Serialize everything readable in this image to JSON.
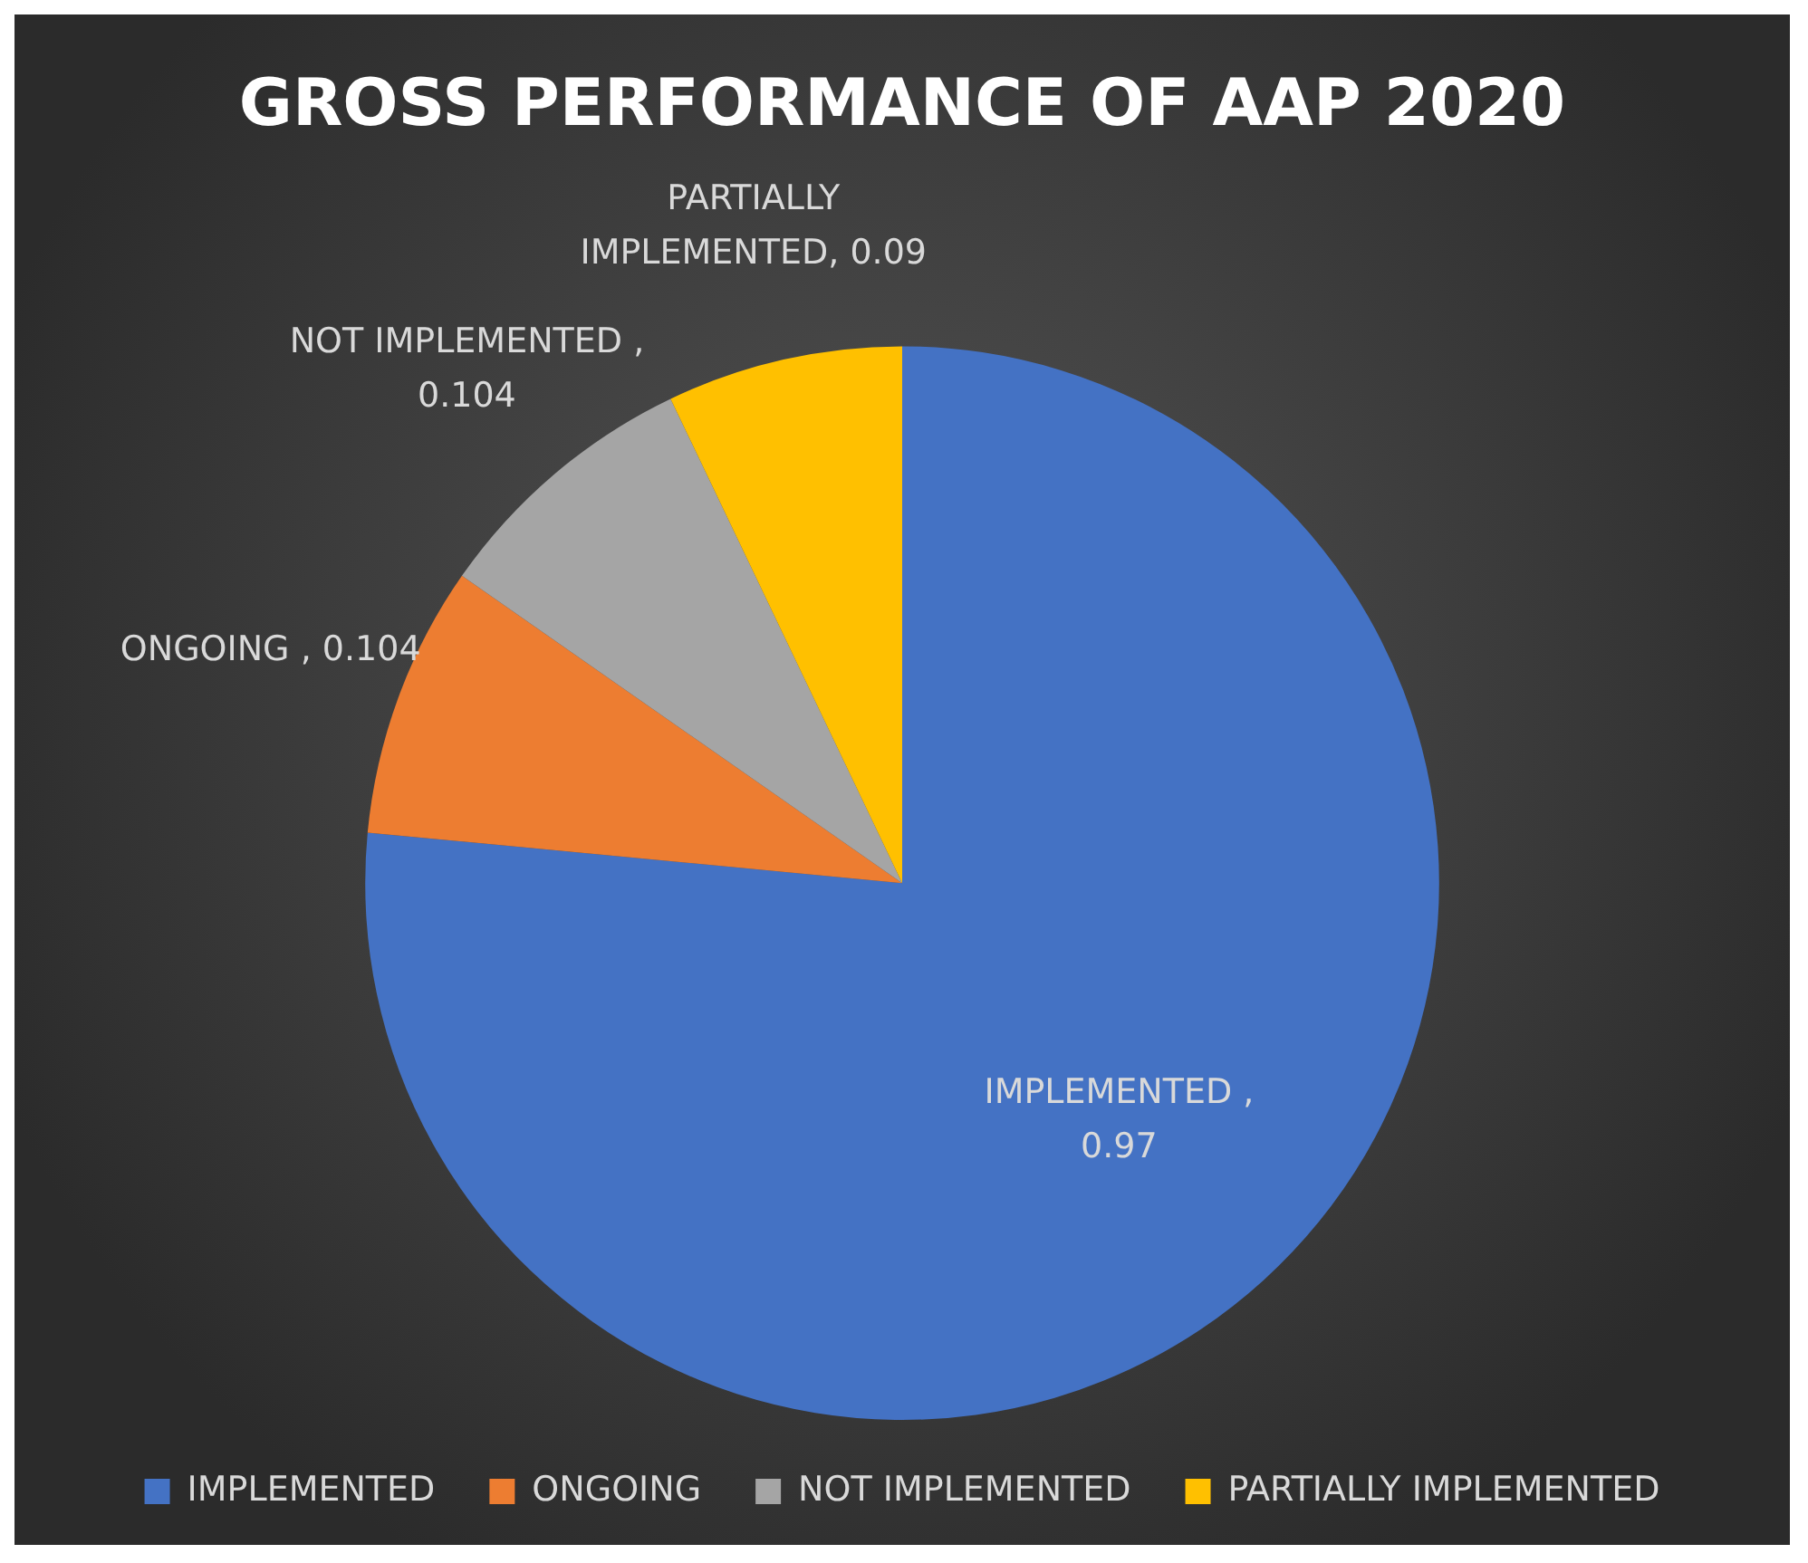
{
  "chart_data": {
    "type": "pie",
    "title": "GROSS PERFORMANCE OF AAP 2020",
    "categories": [
      "IMPLEMENTED",
      "ONGOING",
      "NOT IMPLEMENTED",
      "PARTIALLY IMPLEMENTED"
    ],
    "values": [
      0.97,
      0.104,
      0.104,
      0.09
    ],
    "colors": [
      "#4472c4",
      "#ed7d31",
      "#a5a5a5",
      "#ffc000"
    ],
    "value_labels": [
      "IMPLEMENTED , 0.97",
      "ONGOING , 0.104",
      "NOT IMPLEMENTED , 0.104",
      "PARTIALLY IMPLEMENTED, 0.09"
    ],
    "legend": "bottom"
  }
}
